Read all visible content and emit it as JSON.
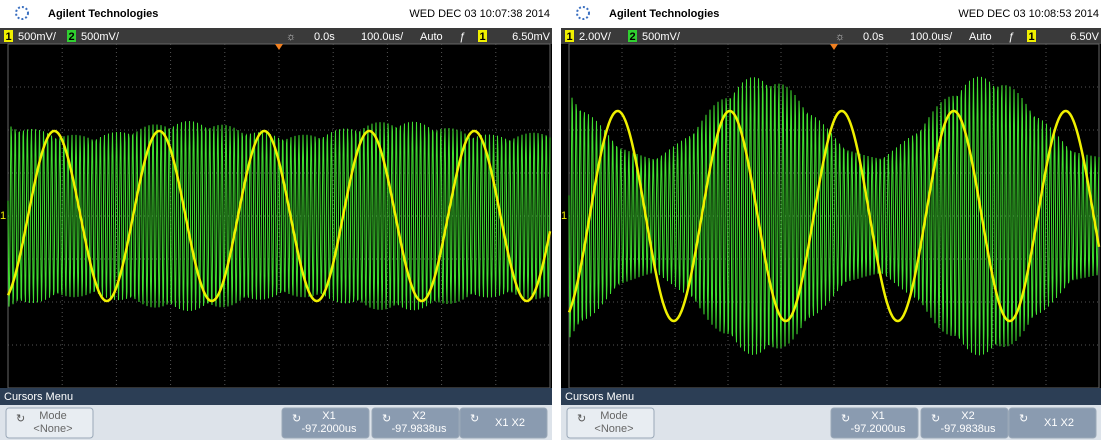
{
  "screens": [
    {
      "header": {
        "brand": "Agilent Technologies",
        "datetime": "WED DEC 03 10:07:38 2014"
      },
      "status": {
        "ch1": "1",
        "ch1_scale": "500mV/",
        "ch2": "2",
        "ch2_scale": "500mV/",
        "delay": "0.0s",
        "timebase": "100.0us/",
        "mode": "Auto",
        "trig_source": "1",
        "trig_level": "6.50mV"
      },
      "menu": {
        "title": "Cursors Menu",
        "softkeys": [
          {
            "label": "Mode",
            "value": "<None>"
          },
          {
            "label": "X1",
            "value": "-97.2000us"
          },
          {
            "label": "X2",
            "value": "-97.9838us"
          },
          {
            "label": "X1 X2"
          }
        ]
      }
    },
    {
      "header": {
        "brand": "Agilent Technologies",
        "datetime": "WED DEC 03 10:08:53 2014"
      },
      "status": {
        "ch1": "1",
        "ch1_scale": "2.00V/",
        "ch2": "2",
        "ch2_scale": "500mV/",
        "delay": "0.0s",
        "timebase": "100.0us/",
        "mode": "Auto",
        "trig_source": "1",
        "trig_level": "6.50V"
      },
      "menu": {
        "title": "Cursors Menu",
        "softkeys": [
          {
            "label": "Mode",
            "value": "<None>"
          },
          {
            "label": "X1",
            "value": "-97.2000us"
          },
          {
            "label": "X2",
            "value": "-97.9838us"
          },
          {
            "label": "X1 X2"
          }
        ]
      }
    }
  ]
}
